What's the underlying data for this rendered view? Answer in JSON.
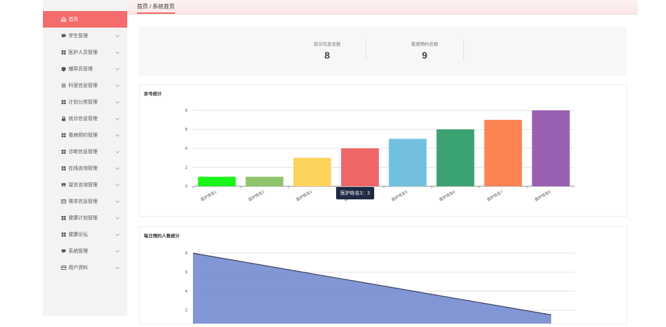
{
  "sidebar": {
    "items": [
      {
        "label": "首页",
        "icon": "home-icon",
        "active": true
      },
      {
        "label": "学生管理",
        "icon": "chat-icon"
      },
      {
        "label": "医护人员管理",
        "icon": "grid-icon"
      },
      {
        "label": "辅导员管理",
        "icon": "shield-icon"
      },
      {
        "label": "科室信息管理",
        "icon": "list-icon"
      },
      {
        "label": "计划分类管理",
        "icon": "grid-icon"
      },
      {
        "label": "就诊信息管理",
        "icon": "lock-icon"
      },
      {
        "label": "看病预约管理",
        "icon": "grid-icon"
      },
      {
        "label": "诊断信息管理",
        "icon": "grid-icon"
      },
      {
        "label": "在线咨询管理",
        "icon": "grid-icon"
      },
      {
        "label": "留言咨询管理",
        "icon": "image-icon"
      },
      {
        "label": "需求信息管理",
        "icon": "card-icon"
      },
      {
        "label": "健康计划管理",
        "icon": "grid-icon"
      },
      {
        "label": "健康论坛",
        "icon": "grid-icon"
      },
      {
        "label": "系统管理",
        "icon": "chat-icon"
      },
      {
        "label": "用户资料",
        "icon": "card-icon"
      }
    ]
  },
  "breadcrumb": {
    "text": "首页 / 系统首页"
  },
  "stats": [
    {
      "label": "就诊信息总数",
      "value": "8"
    },
    {
      "label": "看病预约总数",
      "value": "9"
    }
  ],
  "panels": {
    "remaining": {
      "title": "余号统计"
    },
    "daily": {
      "title": "每日预约人数统计"
    }
  },
  "tooltip": {
    "text": "医护姓名3：3"
  },
  "colors": {
    "accent": "#f46c6c",
    "area": "#7b8fd3"
  },
  "chart_data": [
    {
      "type": "bar",
      "title": "余号统计",
      "categories": [
        "医护姓名1",
        "医护姓名2",
        "医护姓名3",
        "医护姓名4",
        "医护姓名5",
        "医护姓名6",
        "医护姓名7",
        "医护姓名8"
      ],
      "values": [
        1,
        1,
        3,
        4,
        5,
        6,
        7,
        8
      ],
      "colors": [
        "#19f519",
        "#8fc46c",
        "#fcd35c",
        "#ee6666",
        "#73c0de",
        "#3ba272",
        "#fc8452",
        "#9a60b4"
      ],
      "ylim": [
        0,
        8
      ],
      "yticks": [
        0,
        2,
        4,
        6,
        8
      ],
      "grid": true
    },
    {
      "type": "area",
      "title": "每日预约人数统计",
      "yticks": [
        2,
        4,
        6,
        8
      ],
      "ylim": [
        0,
        8
      ],
      "x": [
        "",
        ""
      ],
      "values": [
        8,
        1.5
      ],
      "grid": true
    }
  ]
}
